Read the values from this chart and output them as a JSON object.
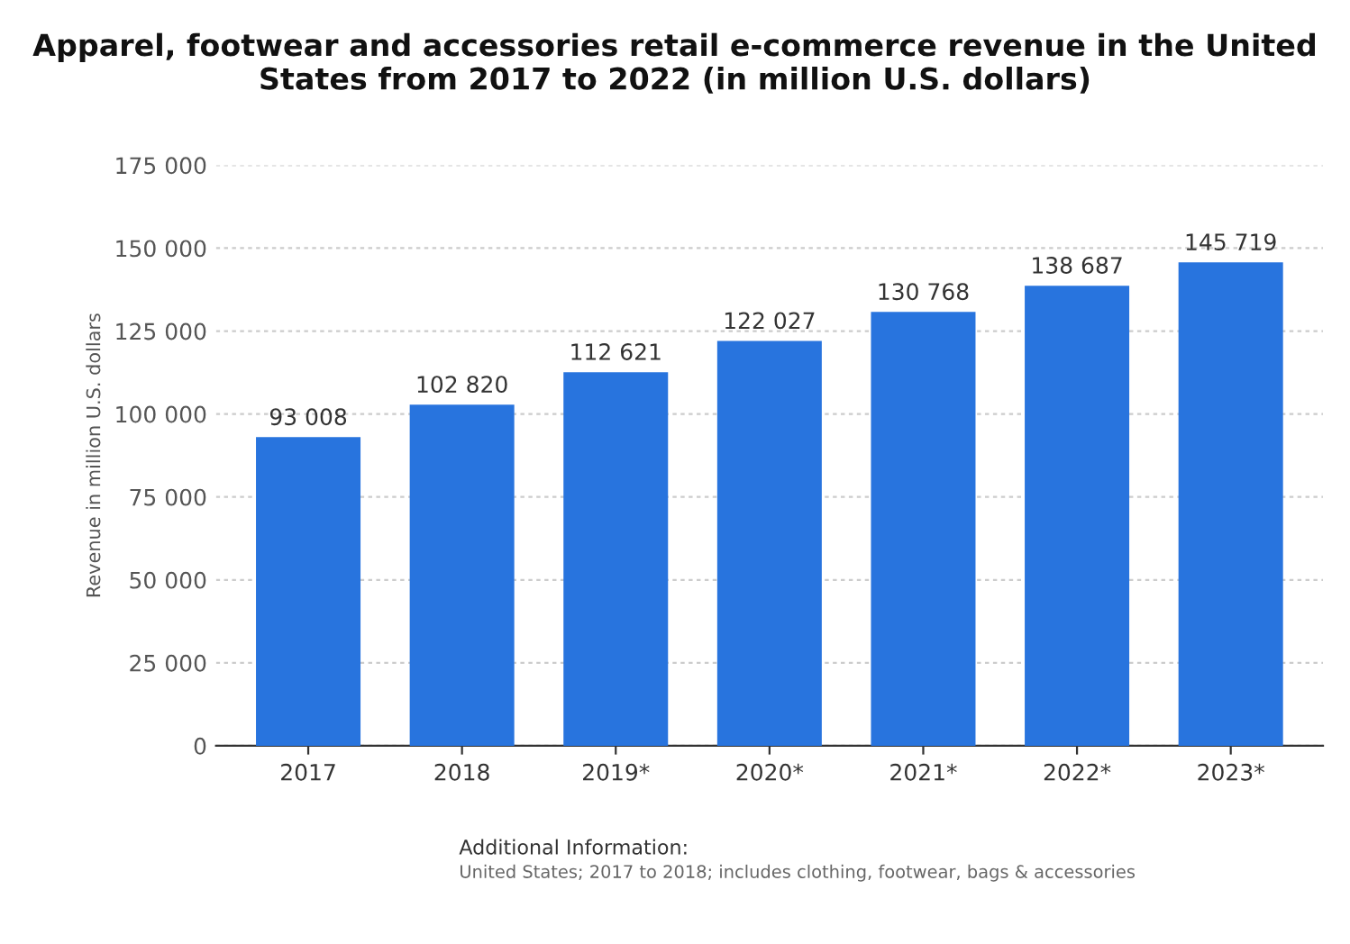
{
  "chart_data": {
    "type": "bar",
    "title": "Apparel, footwear and accessories retail e-commerce revenue in the United States from 2017 to 2022 (in million U.S. dollars)",
    "ylabel": "Revenue in million U.S. dollars",
    "categories": [
      "2017",
      "2018",
      "2019*",
      "2020*",
      "2021*",
      "2022*",
      "2023*"
    ],
    "values": [
      93008,
      102820,
      112621,
      122027,
      130768,
      138687,
      145719
    ],
    "value_labels": [
      "93 008",
      "102 820",
      "112 621",
      "122 027",
      "130 768",
      "138 687",
      "145 719"
    ],
    "color": "#2874de",
    "ylim": [
      0,
      175000
    ],
    "yticks": [
      {
        "value": 0,
        "label": "0"
      },
      {
        "value": 25000,
        "label": "25 000"
      },
      {
        "value": 50000,
        "label": "50 000"
      },
      {
        "value": 75000,
        "label": "75 000"
      },
      {
        "value": 100000,
        "label": "100 000"
      },
      {
        "value": 125000,
        "label": "125 000"
      },
      {
        "value": 150000,
        "label": "150 000"
      },
      {
        "value": 175000,
        "label": "175 000"
      }
    ],
    "grid": "y",
    "annotations": [
      "Additional Information:",
      "United States; 2017 to 2018; includes clothing, footwear, bags & accessories"
    ]
  }
}
